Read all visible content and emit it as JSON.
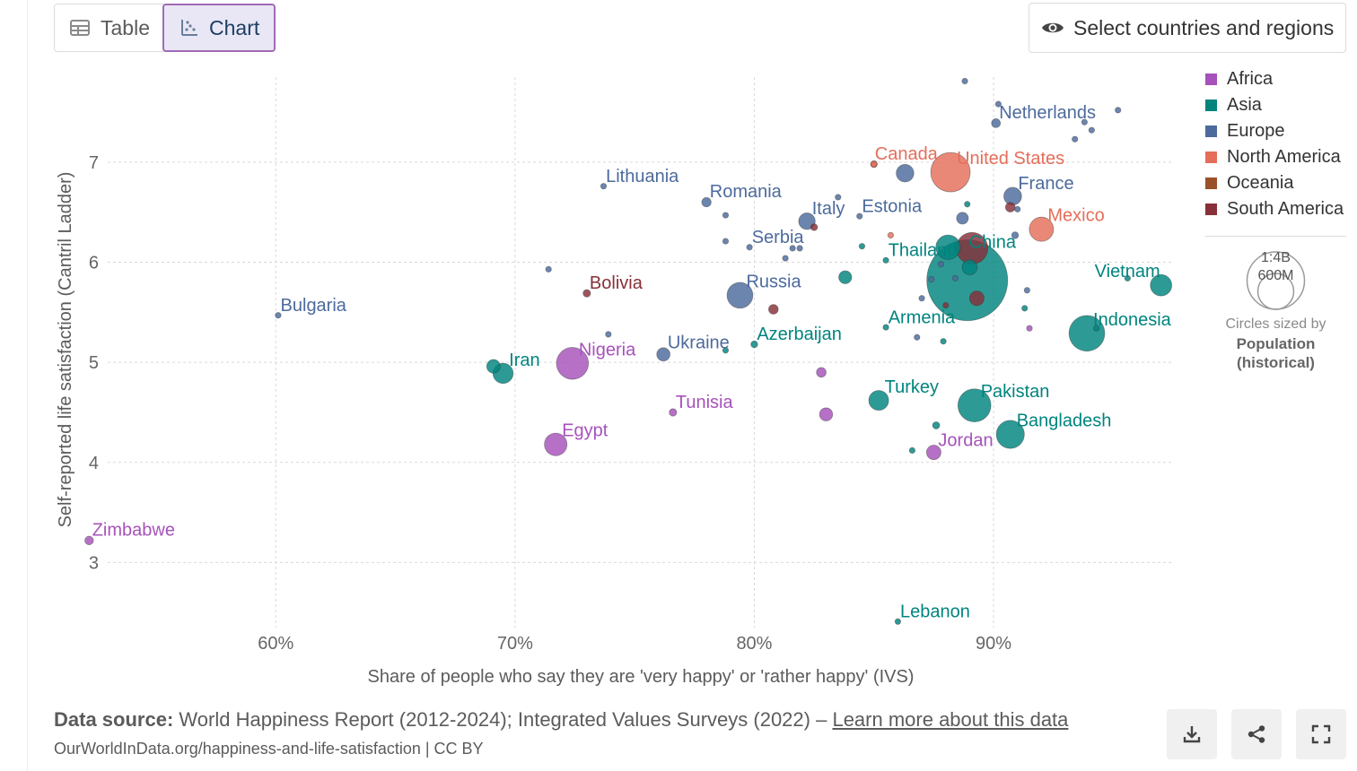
{
  "tabs": {
    "table_label": "Table",
    "chart_label": "Chart"
  },
  "select_button_label": "Select countries and regions",
  "legend": {
    "entries": [
      {
        "name": "Africa",
        "color": "#a652ba"
      },
      {
        "name": "Asia",
        "color": "#00847e"
      },
      {
        "name": "Europe",
        "color": "#4c6a9c"
      },
      {
        "name": "North America",
        "color": "#e56e5a"
      },
      {
        "name": "Oceania",
        "color": "#9a5129"
      },
      {
        "name": "South America",
        "color": "#883039"
      }
    ],
    "size_values": [
      "1:4B",
      "600M"
    ],
    "size_caption": "Circles sized by",
    "size_variable": "Population (historical)"
  },
  "footer": {
    "source_label": "Data source:",
    "source_text": "World Happiness Report (2012-2024); Integrated Values Surveys (2022) –",
    "learn_more": "Learn more about this data",
    "url": "OurWorldInData.org/happiness-and-life-satisfaction | CC BY"
  },
  "icons": {
    "download": "download-icon",
    "share": "share-icon",
    "fullscreen": "fullscreen-icon"
  },
  "chart_data": {
    "type": "scatter",
    "xlabel": "Share of people who say they are 'very happy' or 'rather happy' (IVS)",
    "ylabel": "Self-reported life satisfaction (Cantril Ladder)",
    "x_ticks": [
      "60%",
      "70%",
      "80%",
      "90%"
    ],
    "y_ticks": [
      "3",
      "4",
      "5",
      "6",
      "7"
    ],
    "xlim": [
      0.52,
      0.975
    ],
    "ylim": [
      2.35,
      7.85
    ],
    "size_variable": "Population (historical)",
    "grid": true,
    "legend_position": "right",
    "points": [
      {
        "label": "Zimbabwe",
        "x": 0.522,
        "y": 3.22,
        "region": "Africa",
        "pop": 16
      },
      {
        "label": "Bulgaria",
        "x": 0.601,
        "y": 5.47,
        "region": "Europe",
        "pop": 7
      },
      {
        "label": "Iran",
        "x": 0.695,
        "y": 4.89,
        "region": "Asia",
        "pop": 88
      },
      {
        "label": "",
        "x": 0.691,
        "y": 4.96,
        "region": "Asia",
        "pop": 40
      },
      {
        "label": "",
        "x": 0.714,
        "y": 5.93,
        "region": "Europe",
        "pop": 6
      },
      {
        "label": "Egypt",
        "x": 0.717,
        "y": 4.18,
        "region": "Africa",
        "pop": 110
      },
      {
        "label": "Nigeria",
        "x": 0.724,
        "y": 4.99,
        "region": "Africa",
        "pop": 220
      },
      {
        "label": "Bolivia",
        "x": 0.73,
        "y": 5.69,
        "region": "South America",
        "pop": 12
      },
      {
        "label": "Lithuania",
        "x": 0.737,
        "y": 6.76,
        "region": "Europe",
        "pop": 3
      },
      {
        "label": "",
        "x": 0.739,
        "y": 5.28,
        "region": "Europe",
        "pop": 6
      },
      {
        "label": "Tunisia",
        "x": 0.766,
        "y": 4.5,
        "region": "Africa",
        "pop": 12
      },
      {
        "label": "Ukraine",
        "x": 0.762,
        "y": 5.08,
        "region": "Europe",
        "pop": 38
      },
      {
        "label": "Romania",
        "x": 0.78,
        "y": 6.6,
        "region": "Europe",
        "pop": 19
      },
      {
        "label": "",
        "x": 0.788,
        "y": 6.47,
        "region": "Europe",
        "pop": 5
      },
      {
        "label": "",
        "x": 0.788,
        "y": 6.21,
        "region": "Europe",
        "pop": 5
      },
      {
        "label": "",
        "x": 0.788,
        "y": 5.12,
        "region": "Asia",
        "pop": 3
      },
      {
        "label": "Russia",
        "x": 0.794,
        "y": 5.67,
        "region": "Europe",
        "pop": 144
      },
      {
        "label": "Serbia",
        "x": 0.798,
        "y": 6.15,
        "region": "Europe",
        "pop": 7
      },
      {
        "label": "Azerbaijan",
        "x": 0.8,
        "y": 5.18,
        "region": "Asia",
        "pop": 10
      },
      {
        "label": "",
        "x": 0.808,
        "y": 5.53,
        "region": "South America",
        "pop": 20
      },
      {
        "label": "",
        "x": 0.813,
        "y": 6.04,
        "region": "Europe",
        "pop": 4
      },
      {
        "label": "",
        "x": 0.816,
        "y": 6.14,
        "region": "Europe",
        "pop": 5
      },
      {
        "label": "",
        "x": 0.819,
        "y": 6.14,
        "region": "Europe",
        "pop": 5
      },
      {
        "label": "Italy",
        "x": 0.822,
        "y": 6.41,
        "region": "Europe",
        "pop": 59
      },
      {
        "label": "",
        "x": 0.825,
        "y": 6.35,
        "region": "South America",
        "pop": 10
      },
      {
        "label": "",
        "x": 0.828,
        "y": 4.9,
        "region": "Africa",
        "pop": 20
      },
      {
        "label": "",
        "x": 0.83,
        "y": 4.48,
        "region": "Africa",
        "pop": 37
      },
      {
        "label": "",
        "x": 0.835,
        "y": 6.65,
        "region": "Europe",
        "pop": 5
      },
      {
        "label": "",
        "x": 0.838,
        "y": 5.85,
        "region": "Asia",
        "pop": 36
      },
      {
        "label": "Estonia",
        "x": 0.844,
        "y": 6.46,
        "region": "Europe",
        "pop": 1.3
      },
      {
        "label": "",
        "x": 0.845,
        "y": 6.16,
        "region": "Asia",
        "pop": 5
      },
      {
        "label": "",
        "x": 0.85,
        "y": 6.98,
        "region": "North America",
        "pop": 10
      },
      {
        "label": "Thailand",
        "x": 0.855,
        "y": 6.02,
        "region": "Asia",
        "pop": 2
      },
      {
        "label": "Turkey",
        "x": 0.852,
        "y": 4.62,
        "region": "Asia",
        "pop": 85
      },
      {
        "label": "Armenia",
        "x": 0.855,
        "y": 5.35,
        "region": "Asia",
        "pop": 3
      },
      {
        "label": "",
        "x": 0.857,
        "y": 6.27,
        "region": "North America",
        "pop": 5
      },
      {
        "label": "Lebanon",
        "x": 0.86,
        "y": 2.41,
        "region": "Asia",
        "pop": 5
      },
      {
        "label": "",
        "x": 0.863,
        "y": 6.89,
        "region": "Europe",
        "pop": 67
      },
      {
        "label": "",
        "x": 0.866,
        "y": 4.12,
        "region": "Asia",
        "pop": 4
      },
      {
        "label": "",
        "x": 0.868,
        "y": 5.25,
        "region": "Europe",
        "pop": 4
      },
      {
        "label": "",
        "x": 0.87,
        "y": 5.64,
        "region": "Europe",
        "pop": 4
      },
      {
        "label": "",
        "x": 0.874,
        "y": 5.83,
        "region": "Europe",
        "pop": 4
      },
      {
        "label": "Jordan",
        "x": 0.875,
        "y": 4.1,
        "region": "Africa",
        "pop": 45
      },
      {
        "label": "",
        "x": 0.876,
        "y": 4.37,
        "region": "Asia",
        "pop": 11
      },
      {
        "label": "",
        "x": 0.878,
        "y": 5.98,
        "region": "Europe",
        "pop": 5
      },
      {
        "label": "",
        "x": 0.879,
        "y": 5.21,
        "region": "Asia",
        "pop": 5
      },
      {
        "label": "",
        "x": 0.88,
        "y": 5.57,
        "region": "South America",
        "pop": 5
      },
      {
        "label": "",
        "x": 0.881,
        "y": 6.15,
        "region": "Asia",
        "pop": 130
      },
      {
        "label": "United States",
        "x": 0.882,
        "y": 6.9,
        "region": "North America",
        "pop": 335
      },
      {
        "label": "",
        "x": 0.884,
        "y": 5.84,
        "region": "Europe",
        "pop": 4
      },
      {
        "label": "",
        "x": 0.887,
        "y": 6.44,
        "region": "Europe",
        "pop": 30
      },
      {
        "label": "",
        "x": 0.888,
        "y": 7.81,
        "region": "Europe",
        "pop": 5
      },
      {
        "label": "",
        "x": 0.889,
        "y": 6.58,
        "region": "Asia",
        "pop": 5
      },
      {
        "label": "China",
        "x": 0.889,
        "y": 5.82,
        "region": "Asia",
        "pop": 1410
      },
      {
        "label": "",
        "x": 0.89,
        "y": 5.95,
        "region": "Asia",
        "pop": 50
      },
      {
        "label": "",
        "x": 0.891,
        "y": 6.14,
        "region": "South America",
        "pop": 215
      },
      {
        "label": "",
        "x": 0.893,
        "y": 5.64,
        "region": "South America",
        "pop": 46
      },
      {
        "label": "Netherlands",
        "x": 0.901,
        "y": 7.39,
        "region": "Europe",
        "pop": 17
      },
      {
        "label": "",
        "x": 0.902,
        "y": 7.58,
        "region": "Europe",
        "pop": 5
      },
      {
        "label": "",
        "x": 0.907,
        "y": 6.55,
        "region": "South America",
        "pop": 20
      },
      {
        "label": "France",
        "x": 0.908,
        "y": 6.66,
        "region": "Europe",
        "pop": 68
      },
      {
        "label": "",
        "x": 0.909,
        "y": 6.27,
        "region": "Europe",
        "pop": 10
      },
      {
        "label": "Bangladesh",
        "x": 0.907,
        "y": 4.28,
        "region": "Asia",
        "pop": 170
      },
      {
        "label": "",
        "x": 0.91,
        "y": 6.53,
        "region": "Europe",
        "pop": 5
      },
      {
        "label": "",
        "x": 0.914,
        "y": 5.72,
        "region": "Europe",
        "pop": 5
      },
      {
        "label": "",
        "x": 0.915,
        "y": 5.34,
        "region": "Africa",
        "pop": 5
      },
      {
        "label": "Mexico",
        "x": 0.92,
        "y": 6.33,
        "region": "North America",
        "pop": 127
      },
      {
        "label": "Pakistan",
        "x": 0.892,
        "y": 4.57,
        "region": "Asia",
        "pop": 235
      },
      {
        "label": "",
        "x": 0.913,
        "y": 5.54,
        "region": "Asia",
        "pop": 5
      },
      {
        "label": "",
        "x": 0.934,
        "y": 7.23,
        "region": "Europe",
        "pop": 5
      },
      {
        "label": "",
        "x": 0.938,
        "y": 7.4,
        "region": "Europe",
        "pop": 5
      },
      {
        "label": "",
        "x": 0.941,
        "y": 7.32,
        "region": "Europe",
        "pop": 5
      },
      {
        "label": "Indonesia",
        "x": 0.939,
        "y": 5.29,
        "region": "Asia",
        "pop": 275
      },
      {
        "label": "",
        "x": 0.943,
        "y": 5.34,
        "region": "Asia",
        "pop": 4
      },
      {
        "label": "",
        "x": 0.952,
        "y": 7.52,
        "region": "Europe",
        "pop": 5
      },
      {
        "label": "",
        "x": 0.956,
        "y": 5.84,
        "region": "Asia",
        "pop": 3
      },
      {
        "label": "Vietnam",
        "x": 0.97,
        "y": 5.77,
        "region": "Asia",
        "pop": 99
      },
      {
        "label": "Canada",
        "x": 0.85,
        "y": 6.98,
        "region": "North America",
        "pop": 2
      }
    ]
  }
}
